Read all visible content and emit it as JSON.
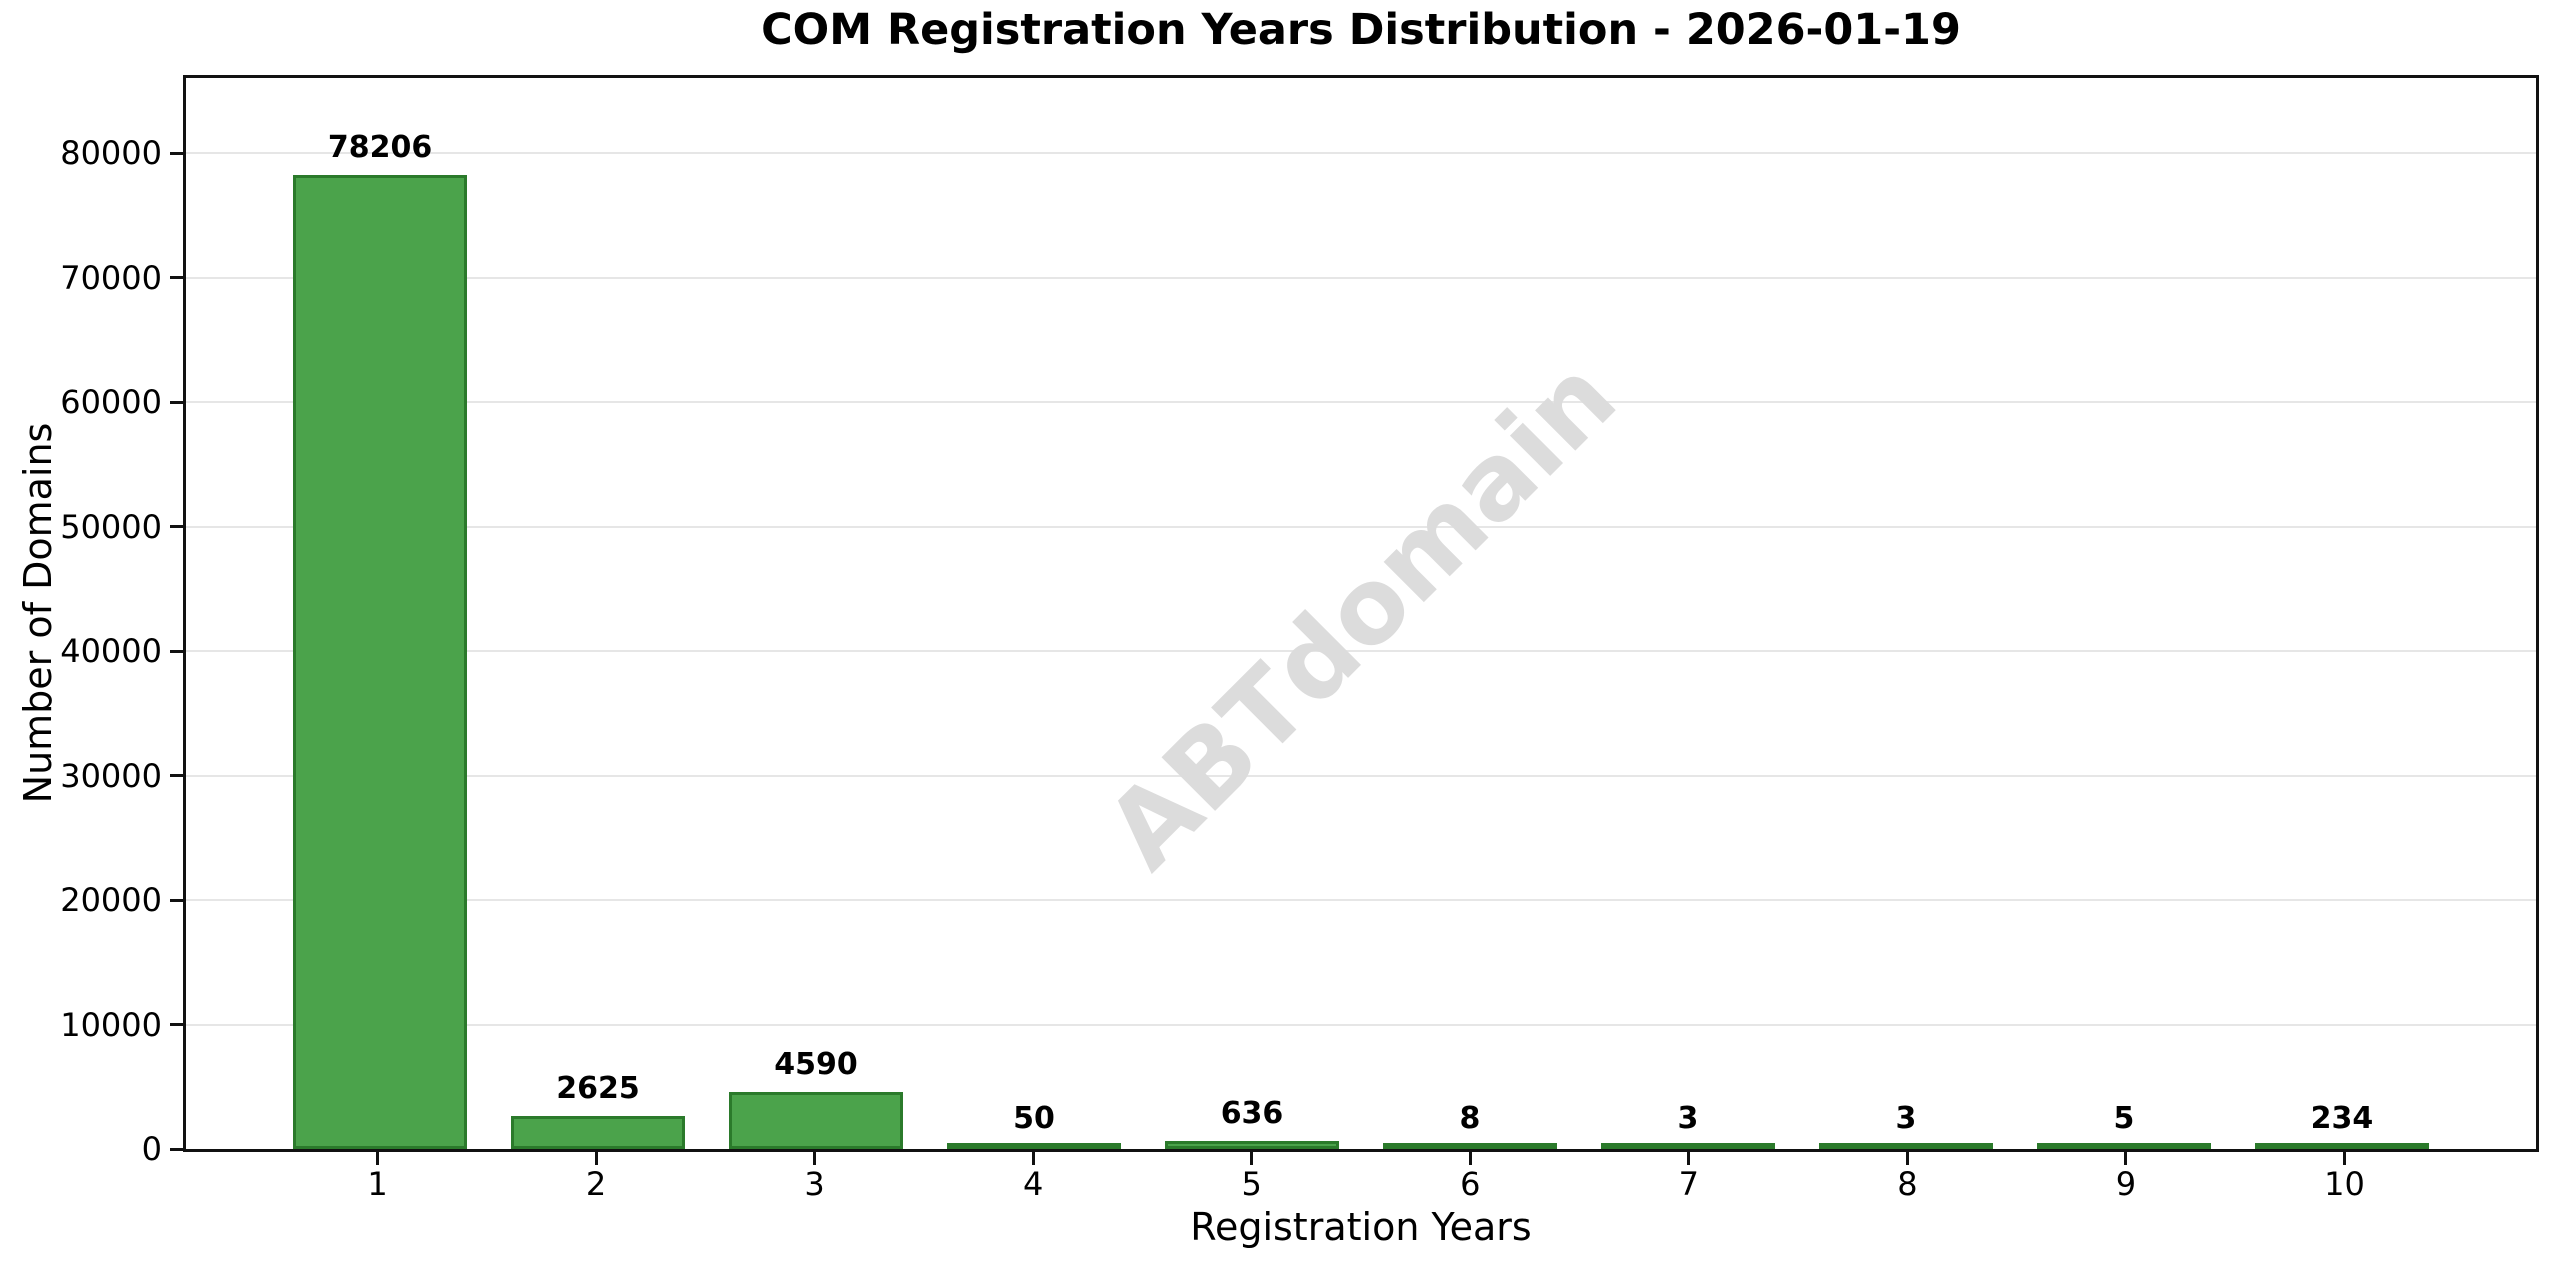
{
  "chart_data": {
    "type": "bar",
    "title": "COM Registration Years Distribution - 2026-01-19",
    "xlabel": "Registration Years",
    "ylabel": "Number of Domains",
    "categories": [
      "1",
      "2",
      "3",
      "4",
      "5",
      "6",
      "7",
      "8",
      "9",
      "10"
    ],
    "values": [
      78206,
      2625,
      4590,
      50,
      636,
      8,
      3,
      3,
      5,
      234
    ],
    "bar_labels": [
      "78206",
      "2625",
      "4590",
      "50",
      "636",
      "8",
      "3",
      "3",
      "5",
      "234"
    ],
    "yticks": [
      0,
      10000,
      20000,
      30000,
      40000,
      50000,
      60000,
      70000,
      80000
    ],
    "ylim": [
      0,
      86027
    ],
    "xlim": [
      0.11,
      10.89
    ],
    "bar_width_units": 0.8,
    "grid": "horizontal",
    "legend": "none",
    "watermark": "ABTdomain",
    "colors": {
      "bar_fill": "#4ba34b",
      "bar_edge": "#2b7a2b",
      "grid": "#e6e6e6",
      "watermark": "#dcdcdc",
      "axis": "#111111",
      "text": "#000000",
      "background": "#ffffff"
    }
  }
}
